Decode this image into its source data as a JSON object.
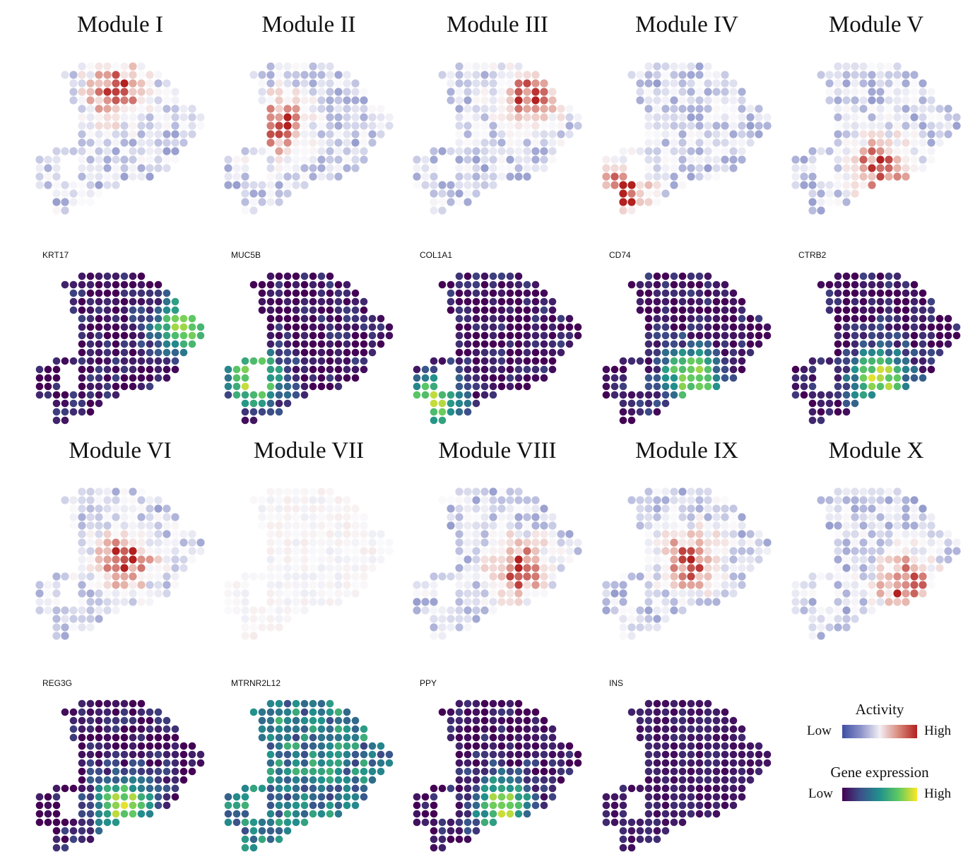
{
  "chart_data": {
    "type": "heatmap",
    "modules": [
      {
        "title": "Module I",
        "gene": "KRT17",
        "activity_hotspot": "top-center",
        "expression_hotspot": "right"
      },
      {
        "title": "Module II",
        "gene": "MUC5B",
        "activity_hotspot": "left-center",
        "expression_hotspot": "left"
      },
      {
        "title": "Module III",
        "gene": "COL1A1",
        "activity_hotspot": "top-right",
        "expression_hotspot": "bottom-left"
      },
      {
        "title": "Module IV",
        "gene": "CD74",
        "activity_hotspot": "bottom-left",
        "expression_hotspot": "bottom-center"
      },
      {
        "title": "Module V",
        "gene": "CTRB2",
        "activity_hotspot": "bottom-center",
        "expression_hotspot": "bottom-center"
      },
      {
        "title": "Module VI",
        "gene": "REG3G",
        "activity_hotspot": "center",
        "expression_hotspot": "bottom-center"
      },
      {
        "title": "Module VII",
        "gene": "MTRNR2L12",
        "activity_hotspot": "none",
        "expression_hotspot": "scattered"
      },
      {
        "title": "Module VIII",
        "gene": "PPY",
        "activity_hotspot": "center-right",
        "expression_hotspot": "bottom-center"
      },
      {
        "title": "Module IX",
        "gene": "INS",
        "activity_hotspot": "center",
        "expression_hotspot": "none"
      },
      {
        "title": "Module X",
        "gene": "",
        "activity_hotspot": "bottom-right",
        "expression_hotspot": "none"
      }
    ]
  },
  "legend": {
    "activity": {
      "title": "Activity",
      "low": "Low",
      "high": "High",
      "colors": [
        "#3f4ea3",
        "#8c93c9",
        "#f2eff5",
        "#d98a7c",
        "#b2201f"
      ]
    },
    "expression": {
      "title": "Gene expression",
      "low": "Low",
      "high": "High",
      "colors": [
        "#440154",
        "#3b528b",
        "#21918c",
        "#5ec962",
        "#fde725"
      ]
    }
  }
}
